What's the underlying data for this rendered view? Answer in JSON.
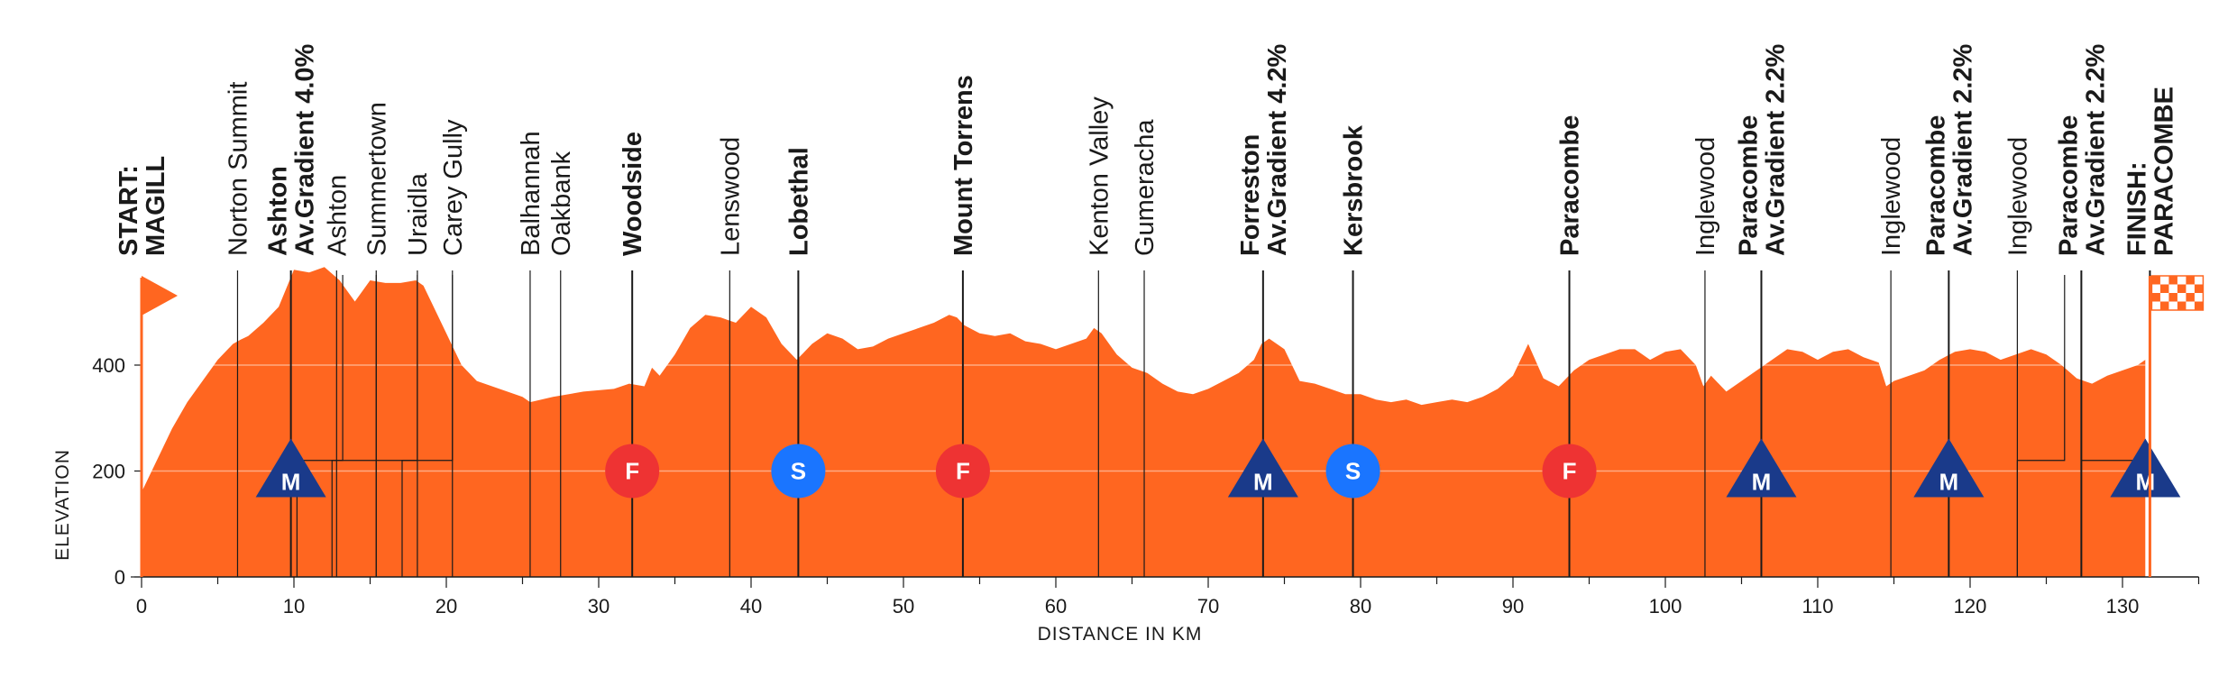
{
  "chart_data": {
    "type": "area",
    "title": "",
    "xlabel": "DISTANCE IN KM",
    "ylabel": "ELEVATION",
    "xlim": [
      0,
      135
    ],
    "ylim": [
      0,
      620
    ],
    "x_ticks": [
      0,
      10,
      20,
      30,
      40,
      50,
      60,
      70,
      80,
      90,
      100,
      110,
      120,
      130
    ],
    "y_ticks": [
      0,
      200,
      400
    ],
    "grid": "horizontal at 200 and 400",
    "colors": {
      "fill": "#ff6620",
      "flag": "#ff6620",
      "climb": "#1a3a8a",
      "sprint": "#1a75ff",
      "feed": "#ee3333",
      "text": "#1a1a1a"
    },
    "profile": {
      "x": [
        0,
        1,
        2,
        3,
        4,
        5,
        6,
        6.5,
        7,
        8,
        9,
        10,
        11,
        12,
        13,
        13.5,
        14,
        15,
        16,
        17,
        18,
        18.5,
        19,
        20,
        21,
        22,
        23,
        24,
        25,
        25.5,
        27,
        29,
        31,
        32,
        33,
        33.5,
        34,
        35,
        36,
        37,
        38,
        38.5,
        39,
        40,
        41,
        42,
        43,
        44,
        45,
        46,
        47,
        48,
        49,
        50,
        51,
        52,
        53,
        53.5,
        54,
        55,
        56,
        57,
        58,
        59,
        60,
        61,
        62,
        62.5,
        63,
        64,
        65,
        66,
        67,
        68,
        69,
        70,
        71,
        72,
        73,
        73.5,
        74,
        75,
        76,
        77,
        78,
        79,
        80,
        81,
        82,
        83,
        84,
        85,
        86,
        87,
        88,
        89,
        90,
        91,
        92,
        93,
        93.5,
        94,
        95,
        96,
        97,
        98,
        99,
        100,
        101,
        102,
        102.5,
        103,
        104,
        105,
        106,
        107,
        108,
        109,
        110,
        111,
        112,
        113,
        114,
        114.5,
        115,
        116,
        117,
        118,
        119,
        120,
        121,
        122,
        123,
        124,
        125,
        126,
        127,
        128,
        129,
        130,
        131,
        131.5
      ],
      "y": [
        160,
        220,
        280,
        330,
        370,
        410,
        440,
        448,
        455,
        480,
        510,
        580,
        575,
        585,
        560,
        540,
        520,
        560,
        555,
        555,
        560,
        550,
        520,
        460,
        400,
        370,
        360,
        350,
        340,
        330,
        340,
        350,
        355,
        365,
        360,
        395,
        380,
        420,
        470,
        495,
        490,
        485,
        480,
        510,
        490,
        440,
        410,
        440,
        460,
        450,
        430,
        435,
        450,
        460,
        470,
        480,
        495,
        490,
        475,
        460,
        455,
        460,
        445,
        440,
        430,
        440,
        450,
        470,
        460,
        420,
        395,
        385,
        365,
        350,
        345,
        355,
        370,
        385,
        410,
        440,
        450,
        430,
        370,
        365,
        355,
        345,
        345,
        335,
        330,
        335,
        325,
        330,
        335,
        330,
        340,
        355,
        380,
        440,
        375,
        360,
        375,
        390,
        410,
        420,
        430,
        430,
        410,
        425,
        430,
        400,
        360,
        380,
        350,
        370,
        390,
        410,
        430,
        425,
        410,
        425,
        430,
        415,
        405,
        360,
        370,
        380,
        390,
        410,
        425,
        430,
        425,
        410,
        420,
        430,
        420,
        400,
        375,
        365,
        380,
        390,
        400,
        410
      ]
    },
    "locations": [
      {
        "km": 0,
        "lines": [
          "START:",
          "MAGILL"
        ],
        "major": true
      },
      {
        "km": 6.3,
        "lines": [
          "Norton Summit"
        ],
        "major": false
      },
      {
        "km": 9.8,
        "lines": [
          "Ashton",
          "Av.Gradient 4.0%"
        ],
        "major": true
      },
      {
        "km": 12.8,
        "lines": [
          "Ashton"
        ],
        "major": false
      },
      {
        "km": 15.4,
        "lines": [
          "Summertown"
        ],
        "major": false
      },
      {
        "km": 18.1,
        "lines": [
          "Uraidla"
        ],
        "major": false
      },
      {
        "km": 20.4,
        "lines": [
          "Carey Gully"
        ],
        "major": false
      },
      {
        "km": 25.5,
        "lines": [
          "Balhannah"
        ],
        "major": false
      },
      {
        "km": 27.5,
        "lines": [
          "Oakbank"
        ],
        "major": false
      },
      {
        "km": 32.2,
        "lines": [
          "Woodside"
        ],
        "major": true
      },
      {
        "km": 38.6,
        "lines": [
          "Lenswood"
        ],
        "major": false
      },
      {
        "km": 43.1,
        "lines": [
          "Lobethal"
        ],
        "major": true
      },
      {
        "km": 53.9,
        "lines": [
          "Mount Torrens"
        ],
        "major": true
      },
      {
        "km": 62.8,
        "lines": [
          "Kenton Valley"
        ],
        "major": false
      },
      {
        "km": 65.8,
        "lines": [
          "Gumeracha"
        ],
        "major": false
      },
      {
        "km": 73.6,
        "lines": [
          "Forreston",
          "Av.Gradient 4.2%"
        ],
        "major": true
      },
      {
        "km": 79.5,
        "lines": [
          "Kersbrook"
        ],
        "major": true
      },
      {
        "km": 93.7,
        "lines": [
          "Paracombe"
        ],
        "major": true
      },
      {
        "km": 102.6,
        "lines": [
          "Inglewood"
        ],
        "major": false
      },
      {
        "km": 106.3,
        "lines": [
          "Paracombe",
          "Av.Gradient 2.2%"
        ],
        "major": true
      },
      {
        "km": 114.8,
        "lines": [
          "Inglewood"
        ],
        "major": false
      },
      {
        "km": 118.6,
        "lines": [
          "Paracombe",
          "Av.Gradient 2.2%"
        ],
        "major": true
      },
      {
        "km": 123.1,
        "lines": [
          "Inglewood"
        ],
        "major": false
      },
      {
        "km": 127.3,
        "lines": [
          "Paracombe",
          "Av.Gradient 2.2%"
        ],
        "major": true
      },
      {
        "km": 131.8,
        "lines": [
          "FINISH:",
          "PARACOMBE"
        ],
        "major": true
      }
    ],
    "markers": [
      {
        "km": 9.8,
        "type": "climb",
        "letter": "M"
      },
      {
        "km": 32.2,
        "type": "feed",
        "letter": "F"
      },
      {
        "km": 43.1,
        "type": "sprint",
        "letter": "S"
      },
      {
        "km": 53.9,
        "type": "feed",
        "letter": "F"
      },
      {
        "km": 73.6,
        "type": "climb",
        "letter": "M"
      },
      {
        "km": 79.5,
        "type": "sprint",
        "letter": "S"
      },
      {
        "km": 93.7,
        "type": "feed",
        "letter": "F"
      },
      {
        "km": 106.3,
        "type": "climb",
        "letter": "M"
      },
      {
        "km": 118.6,
        "type": "climb",
        "letter": "M"
      },
      {
        "km": 131.5,
        "type": "climb",
        "letter": "M"
      }
    ],
    "climb_segments": [
      {
        "start_km": 10.2,
        "end_km": 13.2
      },
      {
        "start_km": 12.5,
        "end_km": 15.4
      },
      {
        "start_km": 15.4,
        "end_km": 18.1
      },
      {
        "start_km": 17.1,
        "end_km": 20.4
      },
      {
        "start_km": 123.1,
        "end_km": 126.2
      },
      {
        "start_km": 127.3,
        "end_km": 131.8
      }
    ]
  }
}
